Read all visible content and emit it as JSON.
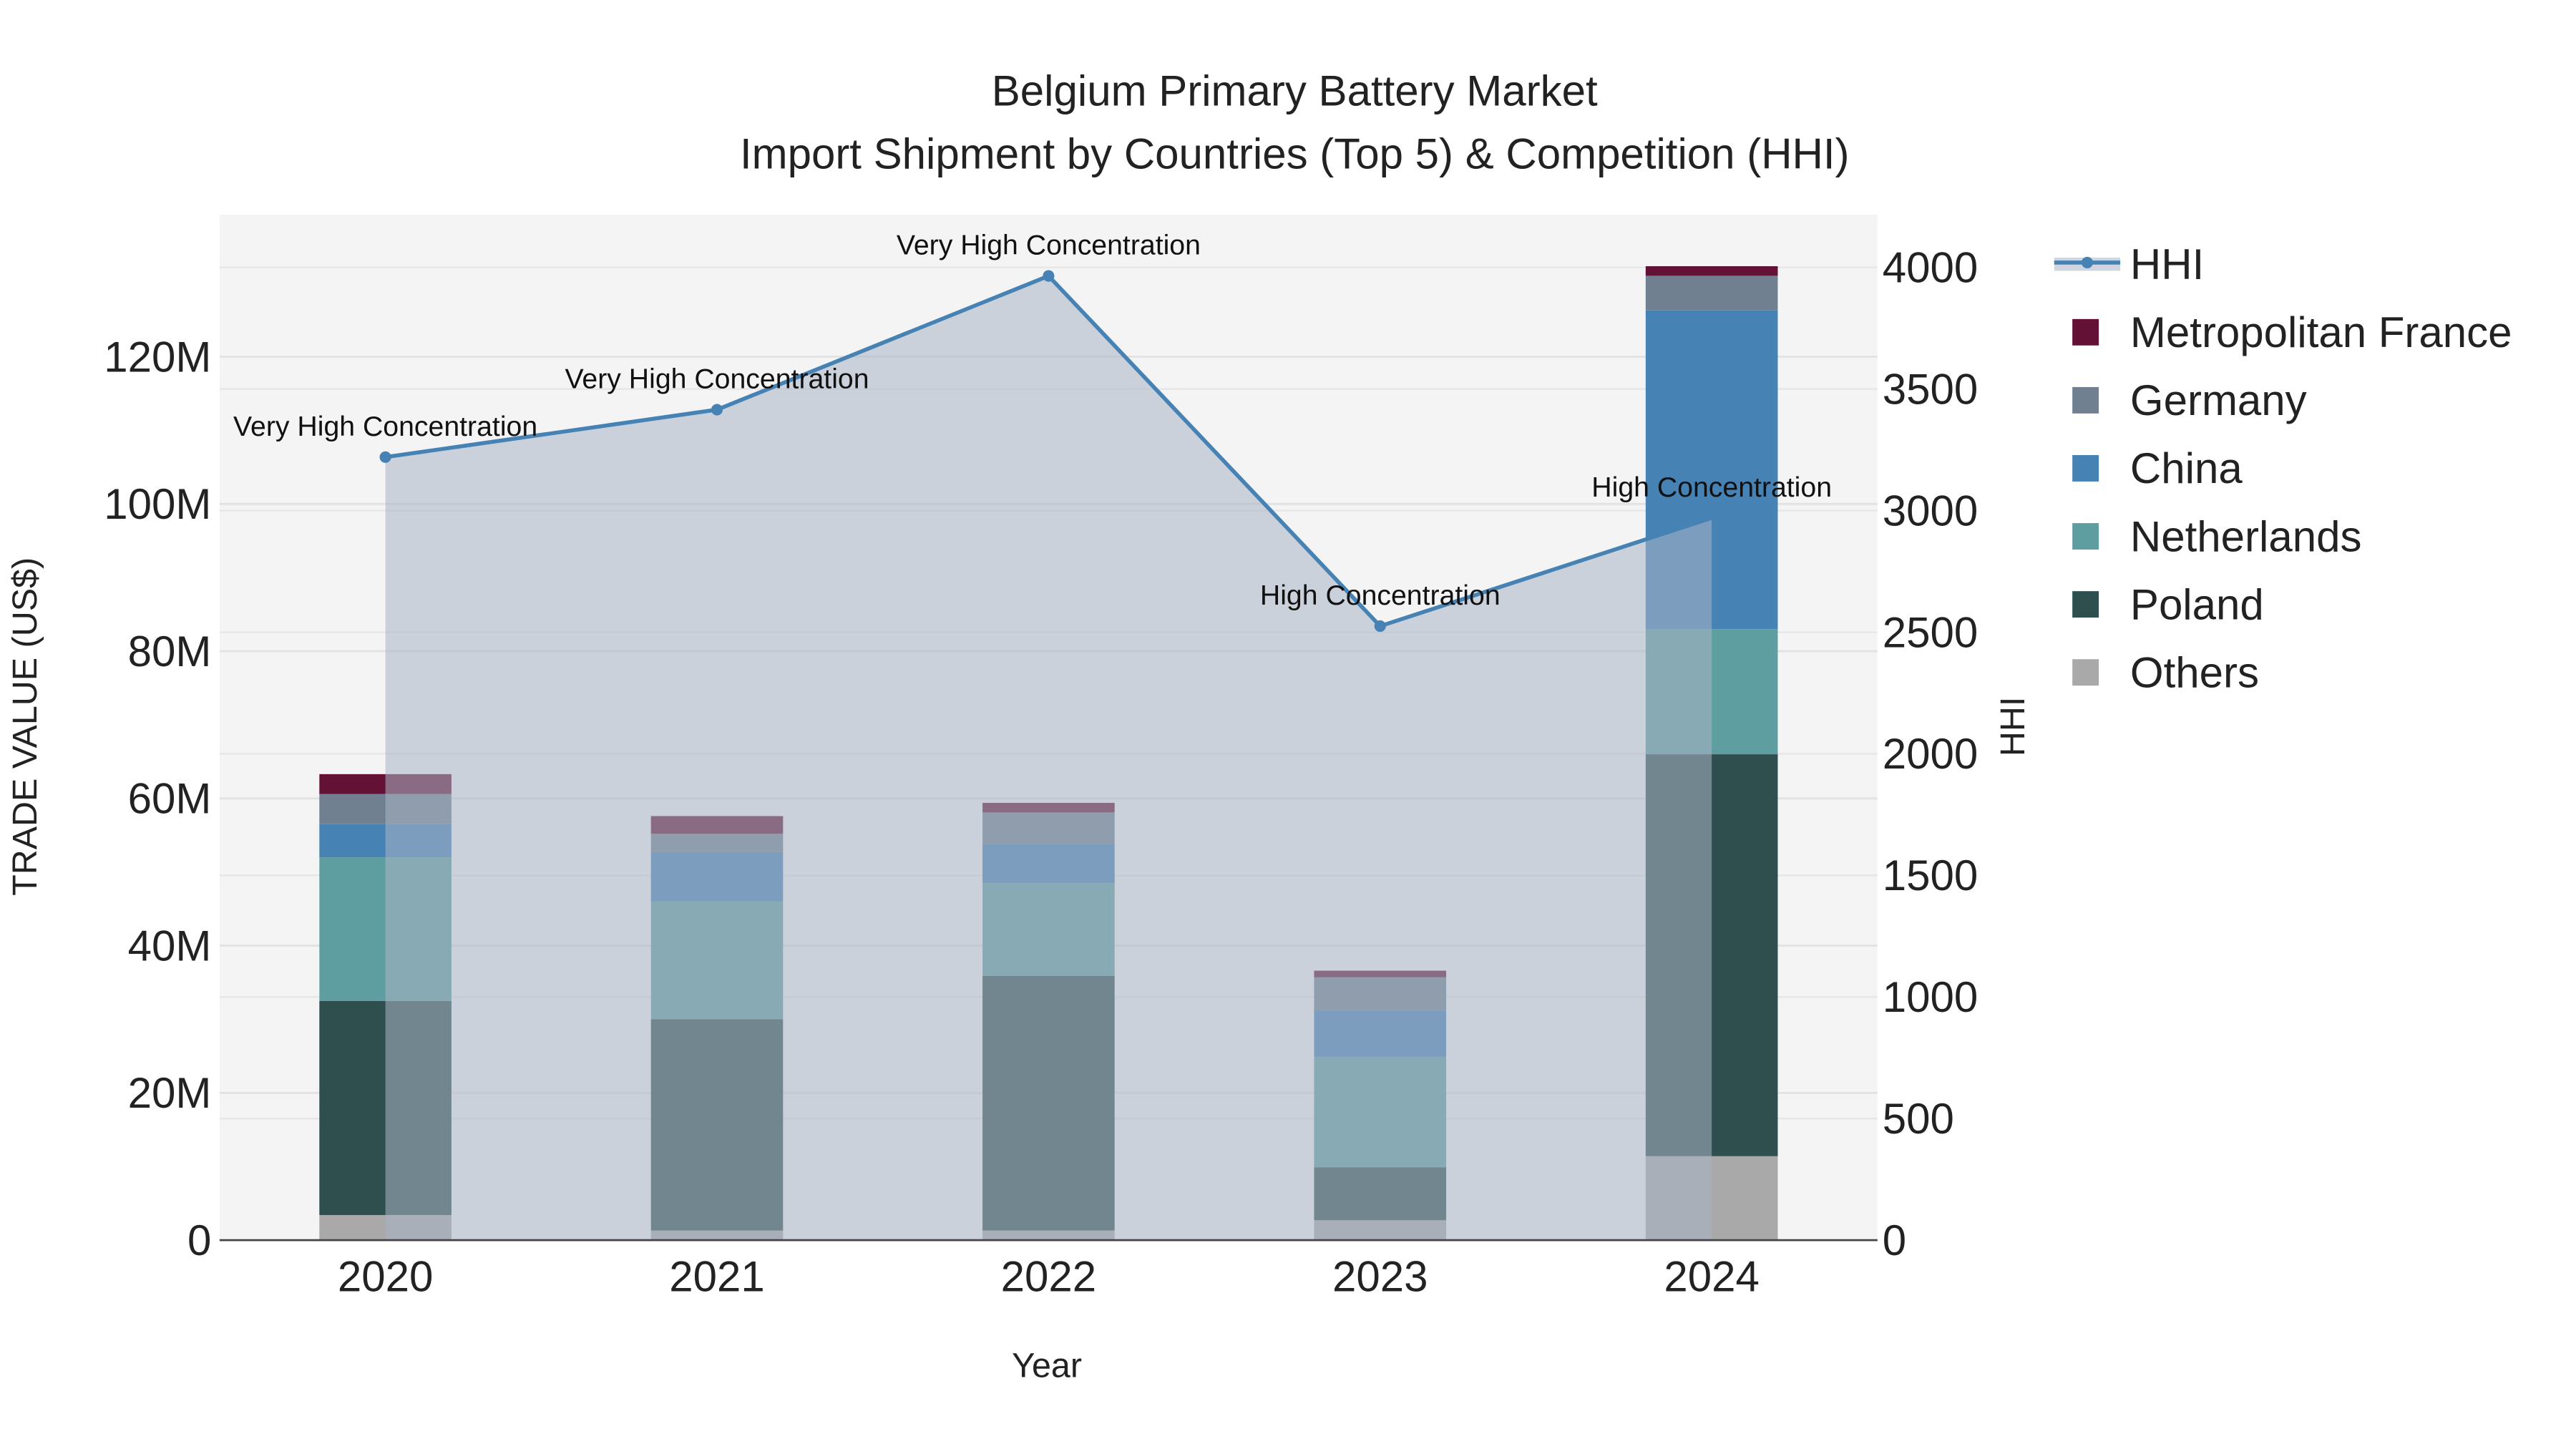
{
  "chart_data": {
    "type": "bar",
    "title": "Belgium Primary Battery Market",
    "subtitle": "Import Shipment by Countries (Top 5) & Competition (HHI)",
    "xlabel": "Year",
    "ylabel": "TRADE VALUE (US$)",
    "y2label": "HHI",
    "categories": [
      "2020",
      "2021",
      "2022",
      "2023",
      "2024"
    ],
    "ylim": [
      0,
      139300000
    ],
    "y2lim": [
      0,
      4217
    ],
    "yticks": [
      0,
      20000000,
      40000000,
      60000000,
      80000000,
      100000000,
      120000000
    ],
    "ytick_labels": [
      "0",
      "20M",
      "40M",
      "60M",
      "80M",
      "100M",
      "120M"
    ],
    "y2ticks": [
      0,
      500,
      1000,
      1500,
      2000,
      2500,
      3000,
      3500,
      4000
    ],
    "y2tick_labels": [
      "0",
      "500",
      "1000",
      "1500",
      "2000",
      "2500",
      "3000",
      "3500",
      "4000"
    ],
    "grid": true,
    "legend_placement": "right",
    "series": [
      {
        "name": "Others",
        "color": "#a9a9a9",
        "values": [
          3400000,
          1300000,
          1300000,
          2700000,
          11400000
        ]
      },
      {
        "name": "Poland",
        "color": "#2f4f4f",
        "values": [
          29100000,
          28700000,
          34600000,
          7200000,
          54600000
        ]
      },
      {
        "name": "Netherlands",
        "color": "#5f9ea0",
        "values": [
          19500000,
          16000000,
          12600000,
          15000000,
          17000000
        ]
      },
      {
        "name": "China",
        "color": "#4682b4",
        "values": [
          4500000,
          6700000,
          5300000,
          6300000,
          43300000
        ]
      },
      {
        "name": "Germany",
        "color": "#708090",
        "values": [
          4100000,
          2500000,
          4300000,
          4500000,
          4700000
        ]
      },
      {
        "name": "Metropolitan France",
        "color": "#631236",
        "values": [
          2700000,
          2400000,
          1300000,
          900000,
          1300000
        ]
      }
    ],
    "hhi": {
      "name": "HHI",
      "color": "#4682b4",
      "values": [
        3220,
        3415,
        3965,
        2525,
        2970
      ],
      "annotations": [
        "Very High Concentration",
        "Very High Concentration",
        "Very High Concentration",
        "High Concentration",
        "High Concentration"
      ]
    },
    "legend_order": [
      "HHI",
      "Metropolitan France",
      "Germany",
      "China",
      "Netherlands",
      "Poland",
      "Others"
    ]
  }
}
